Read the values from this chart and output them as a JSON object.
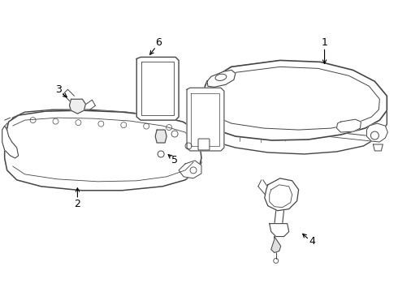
{
  "background_color": "#ffffff",
  "line_color": "#444444",
  "label_color": "#000000",
  "figure_width": 4.9,
  "figure_height": 3.6,
  "dpi": 100
}
